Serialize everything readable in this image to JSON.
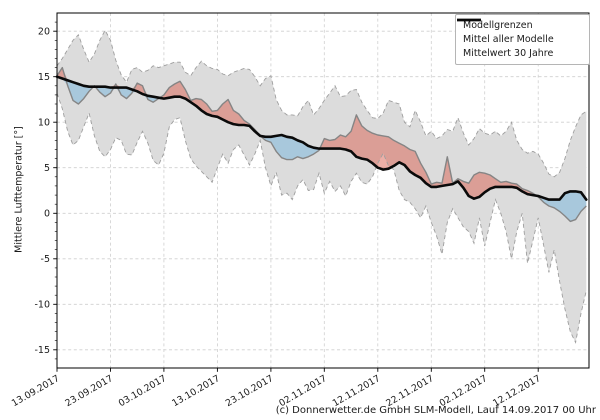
{
  "footer": {
    "credit": "(c) Donnerwetter.de GmbH SLM-Modell, Lauf 14.09.2017 00 Uhr"
  },
  "legend": {
    "position": "top-right",
    "items": [
      {
        "label": "Modellgrenzen",
        "style": "dashed-gray"
      },
      {
        "label": "Mittel aller Modelle",
        "style": "solid-gray"
      },
      {
        "label": "Mittelwert 30 Jahre",
        "style": "thick-black"
      }
    ]
  },
  "chart_data": {
    "type": "line",
    "title": "",
    "xlabel": "",
    "ylabel": "Mittlere Lufttemperatur [°]",
    "grid": true,
    "legend_position": "top-right",
    "ylim": [
      -17,
      22
    ],
    "y_ticks": [
      20,
      15,
      10,
      5,
      0,
      -5,
      -10,
      -15
    ],
    "x_tick_labels": [
      "13.09.2017",
      "23.09.2017",
      "03.10.2017",
      "13.10.2017",
      "23.10.2017",
      "02.11.2017",
      "12.11.2017",
      "22.11.2017",
      "02.12.2017",
      "12.12.2017"
    ],
    "x_tick_days": [
      0,
      10,
      20,
      30,
      40,
      50,
      60,
      70,
      80,
      90
    ],
    "x_range_days": [
      0,
      99.5
    ],
    "sample_interval_days": 1,
    "colors": {
      "band_fill": "#dcdcdc",
      "band_edge": "#9e9e9e",
      "model_mean_line": "#858585",
      "climate_mean_line": "#0a0a0a",
      "warm_anomaly_fill": "#d9604f",
      "cold_anomaly_fill": "#74b3dc",
      "grid": "#cfcfcf"
    },
    "series": [
      {
        "name": "Modellgrenzen (obere Grenze)",
        "role": "upper-bound",
        "values": [
          16.2,
          17.0,
          18.0,
          19.0,
          19.6,
          18.0,
          16.6,
          17.5,
          19.0,
          20.1,
          19.0,
          16.8,
          15.2,
          14.4,
          15.8,
          16.0,
          15.5,
          15.7,
          16.2,
          16.0,
          16.2,
          16.4,
          16.6,
          16.6,
          15.5,
          15.1,
          16.0,
          16.7,
          16.2,
          15.9,
          15.8,
          15.3,
          15.1,
          15.5,
          15.7,
          15.9,
          15.8,
          15.0,
          14.0,
          14.8,
          15.1,
          12.5,
          11.3,
          10.8,
          10.8,
          10.7,
          11.7,
          12.4,
          10.8,
          11.5,
          12.4,
          13.2,
          14.0,
          12.8,
          12.9,
          13.5,
          13.6,
          12.2,
          11.3,
          10.5,
          10.4,
          11.0,
          12.4,
          12.2,
          12.0,
          10.0,
          9.5,
          11.3,
          10.0,
          8.5,
          9.0,
          8.2,
          8.5,
          9.2,
          9.0,
          10.5,
          8.8,
          7.5,
          8.2,
          9.3,
          8.8,
          8.6,
          9.0,
          8.5,
          9.0,
          10.0,
          8.0,
          7.0,
          6.6,
          6.8,
          6.5,
          5.5,
          4.3,
          4.0,
          4.5,
          6.0,
          8.0,
          9.5,
          10.8,
          11.2
        ]
      },
      {
        "name": "Modellgrenzen (untere Grenze)",
        "role": "lower-bound",
        "values": [
          13.2,
          11.5,
          9.0,
          7.5,
          8.0,
          9.5,
          11.0,
          8.5,
          6.8,
          6.2,
          7.0,
          8.3,
          8.0,
          6.5,
          6.4,
          7.8,
          9.0,
          7.7,
          5.8,
          5.3,
          6.6,
          9.5,
          10.3,
          10.5,
          8.0,
          6.0,
          5.2,
          4.6,
          4.0,
          3.4,
          5.0,
          6.5,
          5.5,
          7.0,
          7.5,
          6.4,
          5.3,
          6.5,
          8.0,
          5.0,
          3.0,
          4.5,
          2.0,
          2.2,
          1.5,
          3.0,
          3.7,
          2.5,
          2.6,
          4.4,
          2.2,
          3.5,
          2.4,
          3.0,
          1.9,
          3.5,
          4.4,
          3.4,
          3.2,
          4.0,
          5.5,
          6.6,
          5.2,
          4.8,
          2.5,
          1.5,
          1.2,
          0.5,
          -0.5,
          0.8,
          -1.0,
          -2.5,
          -4.5,
          -1.0,
          0.5,
          -0.5,
          -1.5,
          -2.0,
          -3.3,
          -0.5,
          -3.6,
          -1.0,
          1.5,
          0.0,
          -2.0,
          -5.0,
          -2.0,
          0.0,
          -5.5,
          -3.0,
          -0.5,
          -3.5,
          -6.5,
          -4.0,
          -7.5,
          -10.5,
          -13.0,
          -14.2,
          -11.0,
          -8.5
        ]
      },
      {
        "name": "Mittel aller Modelle",
        "role": "model-mean",
        "values": [
          15.1,
          16.0,
          14.0,
          12.4,
          12.0,
          12.6,
          13.4,
          14.0,
          13.3,
          12.8,
          13.2,
          14.2,
          13.0,
          12.6,
          13.2,
          14.3,
          14.0,
          12.5,
          12.2,
          12.6,
          13.0,
          13.8,
          14.2,
          14.5,
          13.6,
          12.4,
          12.6,
          12.5,
          12.0,
          11.2,
          11.3,
          12.0,
          12.5,
          11.3,
          10.9,
          10.2,
          9.8,
          9.2,
          8.5,
          8.0,
          7.8,
          6.8,
          6.1,
          5.9,
          5.9,
          6.2,
          6.0,
          6.2,
          6.5,
          6.9,
          8.2,
          8.0,
          8.1,
          8.6,
          8.4,
          9.0,
          10.8,
          9.6,
          9.1,
          8.8,
          8.6,
          8.5,
          8.4,
          8.0,
          7.7,
          7.4,
          7.0,
          6.8,
          5.5,
          4.5,
          3.2,
          3.4,
          3.3,
          6.2,
          3.3,
          3.8,
          3.5,
          3.3,
          4.2,
          4.5,
          4.4,
          4.2,
          3.8,
          3.4,
          3.5,
          3.3,
          3.2,
          2.7,
          2.5,
          2.2,
          1.8,
          1.2,
          0.8,
          0.6,
          0.2,
          -0.3,
          -0.9,
          -0.7,
          0.2,
          0.8
        ]
      },
      {
        "name": "Mittelwert 30 Jahre",
        "role": "climate-mean",
        "values": [
          15.0,
          14.8,
          14.6,
          14.4,
          14.2,
          14.0,
          13.9,
          13.9,
          13.9,
          13.9,
          13.8,
          13.8,
          13.8,
          13.8,
          13.6,
          13.4,
          13.1,
          12.9,
          12.8,
          12.7,
          12.6,
          12.7,
          12.8,
          12.8,
          12.6,
          12.2,
          11.8,
          11.3,
          10.9,
          10.7,
          10.6,
          10.3,
          10.0,
          9.8,
          9.7,
          9.7,
          9.6,
          9.0,
          8.5,
          8.4,
          8.4,
          8.5,
          8.6,
          8.4,
          8.3,
          8.0,
          7.8,
          7.4,
          7.2,
          7.1,
          7.1,
          7.1,
          7.1,
          7.1,
          7.0,
          6.8,
          6.2,
          6.0,
          5.9,
          5.5,
          5.0,
          4.8,
          4.9,
          5.2,
          5.6,
          5.3,
          4.6,
          4.2,
          3.9,
          3.3,
          2.9,
          2.9,
          3.0,
          3.1,
          3.2,
          3.5,
          2.8,
          1.9,
          1.6,
          1.8,
          2.3,
          2.7,
          2.9,
          2.9,
          2.9,
          2.9,
          2.8,
          2.4,
          2.1,
          2.0,
          1.9,
          1.7,
          1.5,
          1.5,
          1.5,
          2.2,
          2.4,
          2.4,
          2.3,
          1.5
        ]
      }
    ]
  }
}
